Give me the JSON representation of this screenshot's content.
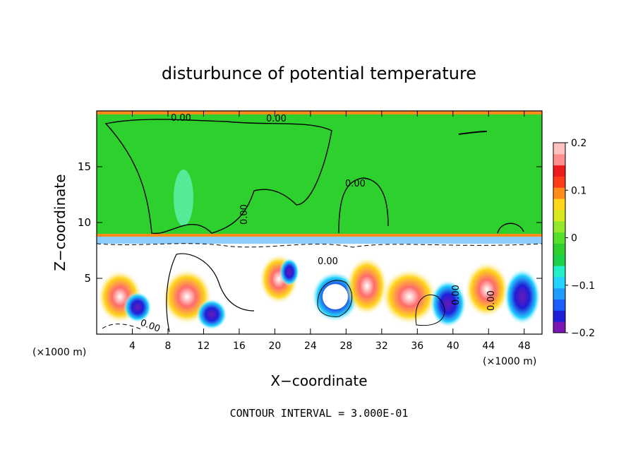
{
  "chart_data": {
    "type": "heatmap",
    "title": "disturbunce of potential temperature",
    "xlabel": "X−coordinate",
    "ylabel": "Z−coordinate",
    "x_unit_label": "(×1000 m)",
    "x_unit_label_right": "(×1000 m)",
    "xlim": [
      0,
      50
    ],
    "ylim": [
      0,
      20
    ],
    "x_ticks": [
      4,
      8,
      12,
      16,
      20,
      24,
      28,
      32,
      36,
      40,
      44,
      48
    ],
    "y_ticks": [
      5,
      10,
      15
    ],
    "colorbar": {
      "range": [
        -0.2,
        0.2
      ],
      "ticks": [
        0.2,
        0.1,
        0,
        -0.1,
        -0.2
      ],
      "tick_labels": [
        "0.2",
        "0.1",
        "0",
        "−0.1",
        "−0.2"
      ],
      "colors": [
        "#7b16b3",
        "#1f1fd9",
        "#1a5cff",
        "#1e9dff",
        "#22d2ff",
        "#23f0c8",
        "#1bd14a",
        "#2ed02e",
        "#55e02a",
        "#93e82a",
        "#d8e81f",
        "#ffd51c",
        "#ff8c1a",
        "#ff3b1a",
        "#ef1a1a",
        "#ff8f8f",
        "#ffc0c0"
      ]
    },
    "contour_labels": [
      "0.00",
      "0.00",
      "0.00",
      "0.00",
      "0.00",
      "0.00",
      "0.00",
      "0.00"
    ],
    "footer": "CONTOUR INTERVAL = 3.000E-01"
  }
}
